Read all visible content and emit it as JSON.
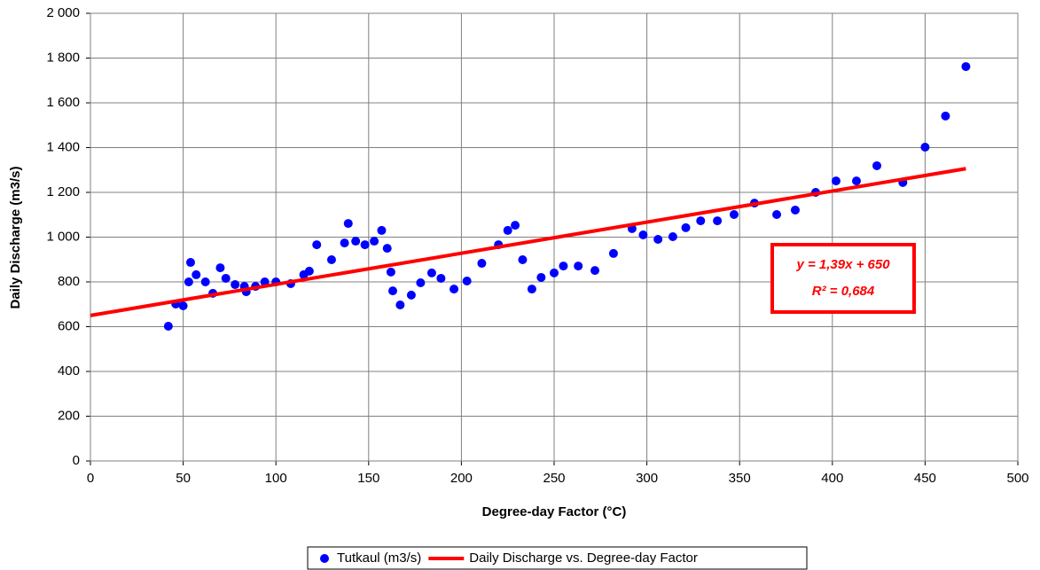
{
  "chart_data": {
    "type": "scatter",
    "xlabel": "Degree-day Factor (°C)",
    "ylabel": "Daily Discharge (m3/s)",
    "xlim": [
      0,
      500
    ],
    "xticks": [
      0,
      50,
      100,
      150,
      200,
      250,
      300,
      350,
      400,
      450,
      500
    ],
    "ylim": [
      0,
      2000
    ],
    "yticks": [
      0,
      200,
      400,
      600,
      800,
      {
        "value": 1000,
        "label": "1 000"
      },
      {
        "value": 1200,
        "label": "1 200"
      },
      {
        "value": 1400,
        "label": "1 400"
      },
      {
        "value": 1600,
        "label": "1 600"
      },
      {
        "value": 1800,
        "label": "1 800"
      },
      {
        "value": 2000,
        "label": "2 000"
      }
    ],
    "grid": true,
    "legend": "bottom",
    "annotation": [
      "y = 1,39x + 650",
      "R² = 0,684"
    ],
    "series": [
      {
        "name": "Tutkaul (m3/s)",
        "type": "scatter",
        "color": "#0000ff",
        "x": [
          42,
          46,
          50,
          53,
          54,
          57,
          62,
          66,
          70,
          73,
          78,
          83,
          84,
          89,
          94,
          100,
          108,
          115,
          118,
          122,
          130,
          137,
          139,
          143,
          148,
          153,
          157,
          160,
          162,
          163,
          167,
          173,
          178,
          184,
          189,
          196,
          203,
          211,
          220,
          225,
          229,
          233,
          238,
          243,
          250,
          255,
          263,
          272,
          282,
          292,
          298,
          306,
          314,
          321,
          329,
          338,
          347,
          358,
          370,
          380,
          391,
          402,
          413,
          424,
          438,
          450,
          461,
          472
        ],
        "values": [
          602,
          701,
          693,
          800,
          887,
          832,
          800,
          749,
          863,
          816,
          788,
          780,
          756,
          780,
          800,
          800,
          792,
          832,
          848,
          966,
          899,
          974,
          1061,
          982,
          966,
          982,
          1030,
          950,
          844,
          760,
          697,
          741,
          796,
          840,
          816,
          768,
          804,
          883,
          966,
          1030,
          1053,
          899,
          768,
          820,
          840,
          871,
          871,
          851,
          927,
          1038,
          1010,
          990,
          1002,
          1042,
          1073,
          1073,
          1101,
          1152,
          1101,
          1121,
          1200,
          1251,
          1251,
          1319,
          1244,
          1402,
          1541,
          1762
        ]
      },
      {
        "name": "Daily Discharge vs. Degree-day Factor",
        "type": "line",
        "color": "#ff0000",
        "x": [
          0,
          472
        ],
        "values": [
          650,
          1306
        ]
      }
    ]
  }
}
